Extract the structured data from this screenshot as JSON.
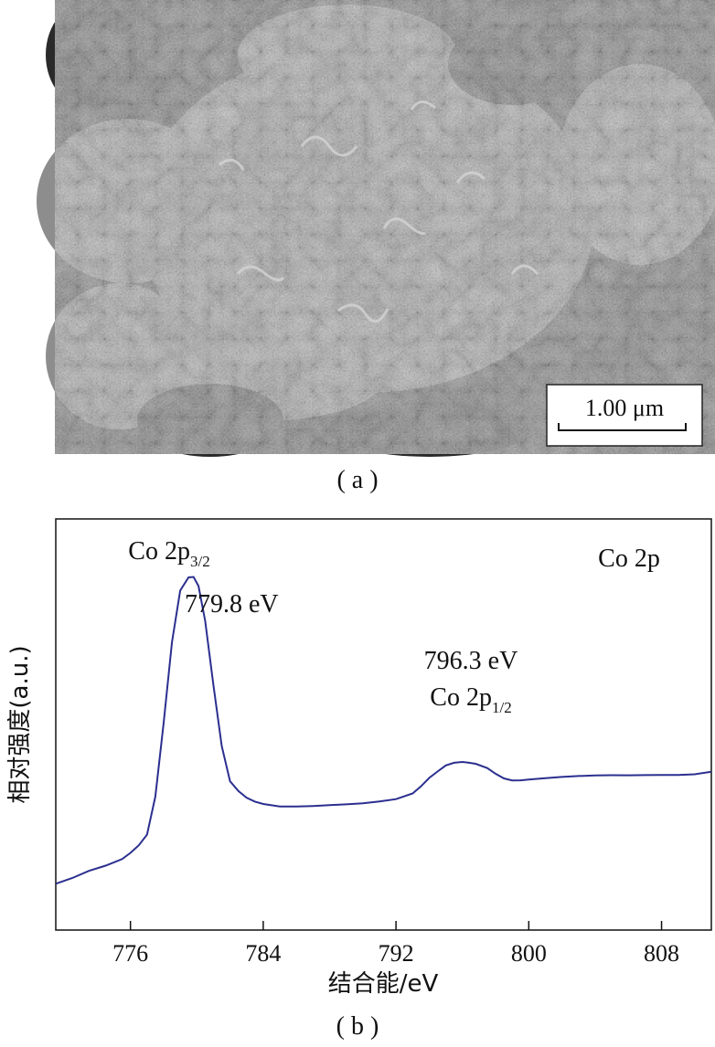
{
  "panel_a": {
    "caption": "( a )",
    "scale_bar_label": "1.00 μm"
  },
  "panel_b": {
    "caption": "( b )"
  },
  "chart_data": {
    "type": "line",
    "title": "Co 2p",
    "xlabel": "结合能/eV",
    "ylabel": "相对强度(a.u.)",
    "xlim": [
      771.5,
      811.0
    ],
    "ylim": [
      0,
      1
    ],
    "xticks": [
      776,
      784,
      792,
      800,
      808
    ],
    "grid": false,
    "line_color": "#2b2f8f",
    "series": [
      {
        "x": [
          771.5,
          772.5,
          773.5,
          774.5,
          775.5,
          776.0,
          776.5,
          777.0,
          777.5,
          778.0,
          778.5,
          779.0,
          779.5,
          779.8,
          780.1,
          780.5,
          781.0,
          781.5,
          782.0,
          782.5,
          783.0,
          783.5,
          784.0,
          785.0,
          786.0,
          787.0,
          788.0,
          789.0,
          790.0,
          791.0,
          792.0,
          793.0,
          793.5,
          794.0,
          794.5,
          795.0,
          795.5,
          796.0,
          796.3,
          796.8,
          797.5,
          798.0,
          798.5,
          799.0,
          799.5,
          800.0,
          801.0,
          802.0,
          803.0,
          804.0,
          805.0,
          806.0,
          807.0,
          808.0,
          809.0,
          810.0,
          811.0
        ],
        "y": [
          0.05,
          0.065,
          0.085,
          0.1,
          0.12,
          0.14,
          0.165,
          0.2,
          0.32,
          0.55,
          0.8,
          0.96,
          1.0,
          1.0,
          0.97,
          0.86,
          0.66,
          0.47,
          0.36,
          0.33,
          0.31,
          0.3,
          0.295,
          0.29,
          0.292,
          0.295,
          0.298,
          0.3,
          0.302,
          0.305,
          0.31,
          0.325,
          0.345,
          0.37,
          0.39,
          0.41,
          0.42,
          0.425,
          0.426,
          0.424,
          0.412,
          0.395,
          0.38,
          0.372,
          0.37,
          0.37,
          0.372,
          0.374,
          0.376,
          0.378,
          0.38,
          0.382,
          0.385,
          0.388,
          0.39,
          0.393,
          0.395
        ]
      }
    ],
    "annotations": [
      {
        "x": 779.8,
        "base": "Co 2p",
        "sub": "3/2",
        "value_label": "779.8 eV"
      },
      {
        "x": 796.3,
        "base": "Co 2p",
        "sub": "1/2",
        "value_label": "796.3 eV"
      }
    ]
  }
}
